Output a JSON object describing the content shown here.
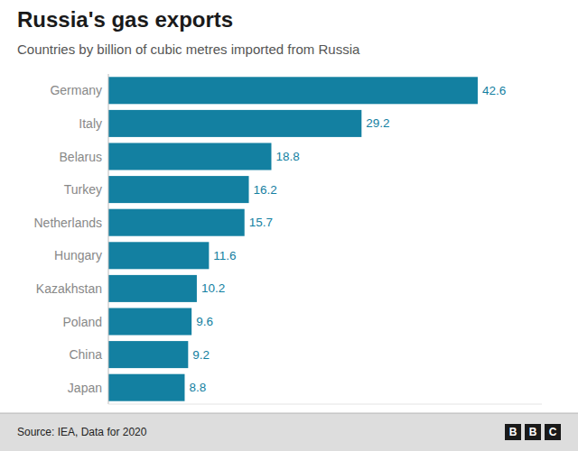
{
  "chart_data": {
    "type": "bar",
    "orientation": "horizontal",
    "title": "Russia's gas exports",
    "subtitle": "Countries by billion of cubic metres imported from Russia",
    "source": "Source: IEA, Data for 2020",
    "logo": "BBC",
    "categories": [
      "Germany",
      "Italy",
      "Belarus",
      "Turkey",
      "Netherlands",
      "Hungary",
      "Kazakhstan",
      "Poland",
      "China",
      "Japan"
    ],
    "values": [
      42.6,
      29.2,
      18.8,
      16.2,
      15.7,
      11.6,
      10.2,
      9.6,
      9.2,
      8.8
    ],
    "color": "#1380A1",
    "xlim": [
      0,
      50
    ],
    "grid": false,
    "data_labels": true,
    "tick_labels": "y"
  }
}
